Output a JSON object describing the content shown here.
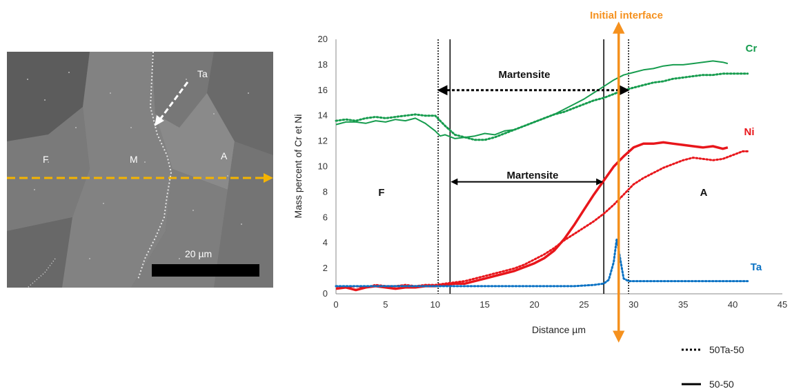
{
  "micrograph": {
    "labels": {
      "ferrite": "F",
      "martensite": "M",
      "austenite": "A",
      "tantalum": "Ta"
    },
    "scale_bar": "20 µm",
    "colors": {
      "scan_line": "#f5b400",
      "arrow": "#ffffff"
    }
  },
  "chart_data": {
    "type": "line",
    "xlabel": "Distance µm",
    "ylabel": "Mass percent of Cr et Ni",
    "xlim": [
      0,
      45
    ],
    "ylim": [
      0,
      20
    ],
    "x_ticks": [
      0,
      5,
      10,
      15,
      20,
      25,
      30,
      35,
      40,
      45
    ],
    "y_ticks": [
      0,
      2,
      4,
      6,
      8,
      10,
      12,
      14,
      16,
      18,
      20
    ],
    "grid": false,
    "legend_position": "bottom-right",
    "legend": [
      {
        "label": "50Ta-50",
        "style": "dotted"
      },
      {
        "label": "50-50",
        "style": "solid"
      }
    ],
    "annotations": {
      "initial_interface": "Initial interface",
      "martensite_top": "Martensite",
      "martensite_bottom": "Martensite",
      "zone_f": "F",
      "zone_a": "A",
      "cr": "Cr",
      "ni": "Ni",
      "ta": "Ta"
    },
    "interface_x": 28.5,
    "boundaries": {
      "dotted": [
        10.3,
        29.5
      ],
      "solid": [
        11.5,
        27
      ]
    },
    "martensite_dotted_range": [
      10.3,
      29.5
    ],
    "martensite_solid_range": [
      11.5,
      27
    ],
    "colors": {
      "cr": "#169c4e",
      "ni": "#e8161b",
      "ta": "#0a72c4",
      "interface": "#f5911e"
    },
    "series": [
      {
        "name": "Cr",
        "element": "Cr",
        "style": "solid",
        "x": [
          0,
          1,
          2,
          3,
          4,
          5,
          6,
          7,
          8,
          9,
          10,
          10.5,
          11,
          12,
          13,
          14,
          15,
          16,
          17,
          18,
          19,
          20,
          21,
          22,
          23,
          24,
          25,
          26,
          27,
          28,
          29,
          30,
          31,
          32,
          33,
          34,
          35,
          36,
          37,
          38,
          39,
          39.5
        ],
        "y": [
          13.3,
          13.5,
          13.5,
          13.4,
          13.6,
          13.5,
          13.7,
          13.6,
          13.8,
          13.4,
          12.8,
          12.4,
          12.5,
          12.2,
          12.3,
          12.4,
          12.6,
          12.5,
          12.8,
          12.9,
          13.2,
          13.5,
          13.8,
          14.1,
          14.5,
          14.9,
          15.3,
          15.8,
          16.3,
          16.8,
          17.2,
          17.4,
          17.6,
          17.7,
          17.9,
          18.0,
          18.0,
          18.1,
          18.2,
          18.3,
          18.2,
          18.1
        ]
      },
      {
        "name": "Cr",
        "element": "Cr",
        "style": "dotted",
        "x": [
          0,
          1,
          2,
          3,
          4,
          5,
          6,
          7,
          8,
          9,
          10,
          11,
          12,
          13,
          14,
          15,
          16,
          17,
          18,
          19,
          20,
          21,
          22,
          23,
          24,
          25,
          26,
          27,
          28,
          29,
          30,
          31,
          32,
          33,
          34,
          35,
          36,
          37,
          38,
          39,
          40,
          41,
          41.5
        ],
        "y": [
          13.6,
          13.7,
          13.6,
          13.8,
          13.9,
          13.8,
          13.9,
          14.0,
          14.1,
          14.0,
          14.0,
          13.2,
          12.5,
          12.3,
          12.1,
          12.1,
          12.3,
          12.6,
          12.9,
          13.2,
          13.5,
          13.8,
          14.1,
          14.3,
          14.6,
          14.9,
          15.2,
          15.4,
          15.7,
          16.0,
          16.2,
          16.4,
          16.6,
          16.7,
          16.9,
          17.0,
          17.1,
          17.2,
          17.2,
          17.3,
          17.3,
          17.3,
          17.3
        ]
      },
      {
        "name": "Ni",
        "element": "Ni",
        "style": "solid",
        "x": [
          0,
          1,
          2,
          3,
          4,
          5,
          6,
          7,
          8,
          9,
          10,
          11,
          12,
          13,
          14,
          15,
          16,
          17,
          18,
          19,
          20,
          21,
          22,
          23,
          24,
          25,
          26,
          27,
          28,
          29,
          30,
          31,
          32,
          33,
          34,
          35,
          36,
          37,
          38,
          39,
          39.5
        ],
        "y": [
          0.4,
          0.5,
          0.3,
          0.5,
          0.6,
          0.5,
          0.4,
          0.5,
          0.5,
          0.6,
          0.6,
          0.7,
          0.8,
          0.8,
          1.0,
          1.2,
          1.4,
          1.6,
          1.8,
          2.1,
          2.4,
          2.8,
          3.4,
          4.3,
          5.4,
          6.6,
          7.8,
          8.9,
          10.0,
          10.8,
          11.5,
          11.8,
          11.8,
          11.9,
          11.8,
          11.7,
          11.6,
          11.5,
          11.6,
          11.4,
          11.5
        ]
      },
      {
        "name": "Ni",
        "element": "Ni",
        "style": "dotted",
        "x": [
          0,
          1,
          2,
          3,
          4,
          5,
          6,
          7,
          8,
          9,
          10,
          11,
          12,
          13,
          14,
          15,
          16,
          17,
          18,
          19,
          20,
          21,
          22,
          23,
          24,
          25,
          26,
          27,
          28,
          29,
          30,
          31,
          32,
          33,
          34,
          35,
          36,
          37,
          38,
          39,
          40,
          41,
          41.5
        ],
        "y": [
          0.6,
          0.5,
          0.6,
          0.5,
          0.7,
          0.6,
          0.6,
          0.7,
          0.6,
          0.7,
          0.7,
          0.8,
          0.9,
          1.0,
          1.2,
          1.4,
          1.6,
          1.8,
          2.0,
          2.3,
          2.7,
          3.1,
          3.6,
          4.2,
          4.7,
          5.2,
          5.7,
          6.3,
          7.0,
          7.8,
          8.6,
          9.1,
          9.5,
          9.9,
          10.2,
          10.5,
          10.7,
          10.6,
          10.5,
          10.6,
          10.9,
          11.2,
          11.2
        ]
      },
      {
        "name": "Ta",
        "element": "Ta",
        "style": "dotted",
        "x": [
          0,
          2,
          4,
          6,
          8,
          10,
          12,
          14,
          16,
          18,
          20,
          22,
          24,
          26,
          27,
          27.5,
          28,
          28.3,
          28.6,
          29,
          29.5,
          30,
          32,
          34,
          36,
          38,
          40,
          41.5
        ],
        "y": [
          0.6,
          0.6,
          0.6,
          0.6,
          0.6,
          0.6,
          0.6,
          0.6,
          0.6,
          0.6,
          0.6,
          0.6,
          0.6,
          0.7,
          0.8,
          1.1,
          2.5,
          4.3,
          3.0,
          1.2,
          1.0,
          1.0,
          1.0,
          1.0,
          1.0,
          1.0,
          1.0,
          1.0
        ]
      }
    ]
  }
}
